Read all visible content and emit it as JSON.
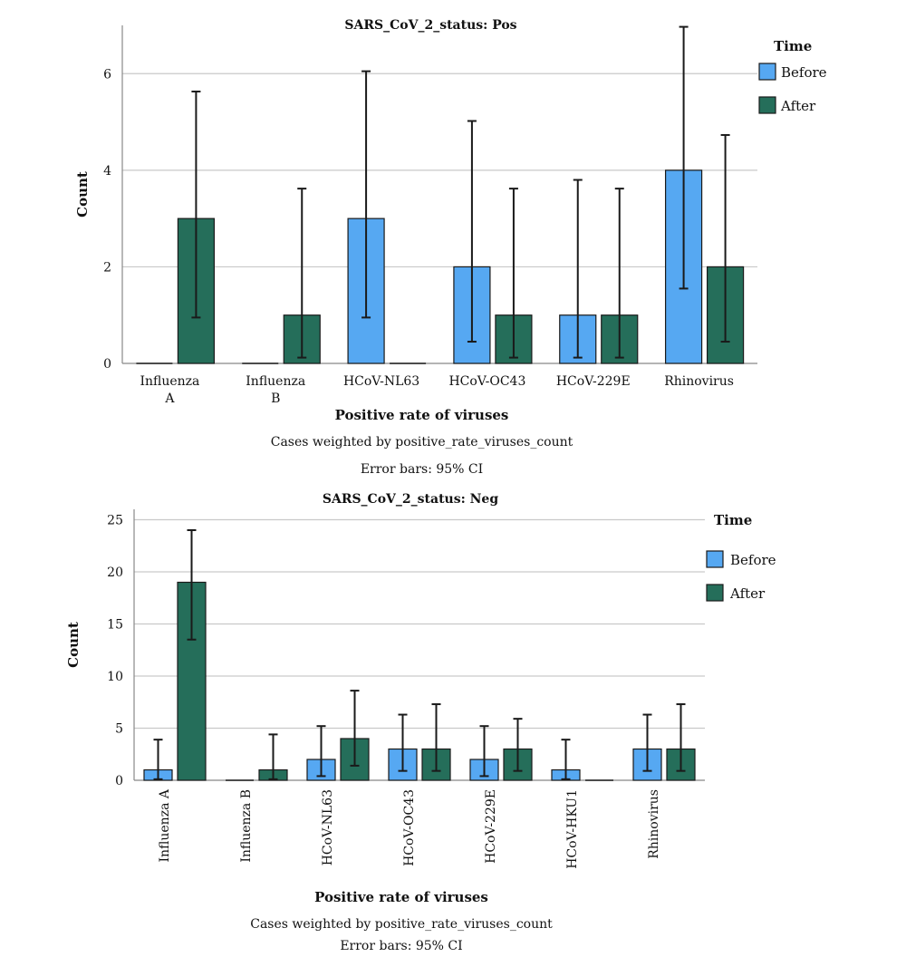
{
  "chart_data": [
    {
      "type": "bar",
      "title": "SARS_CoV_2_status: Pos",
      "xlabel": "Positive rate of viruses",
      "ylabel": "Count",
      "categories": [
        "Influenza\nA",
        "Influenza\nB",
        "HCoV-NL63",
        "HCoV-OC43",
        "HCoV-229E",
        "Rhinovirus"
      ],
      "ylim": [
        0,
        7
      ],
      "yticks": [
        0,
        2,
        4,
        6
      ],
      "grid": true,
      "legend": {
        "title": "Time",
        "placement": "right"
      },
      "series": [
        {
          "name": "Before",
          "color": "#56a8f2",
          "values": [
            0,
            0,
            3,
            2,
            1,
            4
          ],
          "ci_low": [
            null,
            null,
            0.95,
            0.45,
            0.12,
            1.55
          ],
          "ci_high": [
            null,
            null,
            6.05,
            5.02,
            3.8,
            6.97
          ]
        },
        {
          "name": "After",
          "color": "#256e5a",
          "values": [
            3,
            1,
            0,
            1,
            1,
            2
          ],
          "ci_low": [
            0.95,
            0.12,
            null,
            0.12,
            0.12,
            0.45
          ],
          "ci_high": [
            5.63,
            3.62,
            null,
            3.62,
            3.62,
            4.73
          ]
        }
      ],
      "notes": [
        "Cases weighted by positive_rate_viruses_count",
        "Error bars: 95% CI"
      ]
    },
    {
      "type": "bar",
      "title": "SARS_CoV_2_status: Neg",
      "xlabel": "Positive rate of viruses",
      "ylabel": "Count",
      "categories": [
        "Influenza A",
        "Influenza B",
        "HCoV-NL63",
        "HCoV-OC43",
        "HCoV-229E",
        "HCoV-HKU1",
        "Rhinovirus"
      ],
      "ylim": [
        0,
        26
      ],
      "yticks": [
        0,
        5,
        10,
        15,
        20,
        25
      ],
      "grid": true,
      "legend": {
        "title": "Time",
        "placement": "right"
      },
      "series": [
        {
          "name": "Before",
          "color": "#56a8f2",
          "values": [
            1,
            0,
            2,
            3,
            2,
            1,
            3
          ],
          "ci_low": [
            0.1,
            null,
            0.4,
            0.9,
            0.4,
            0.1,
            0.9
          ],
          "ci_high": [
            3.9,
            null,
            5.2,
            6.3,
            5.2,
            3.9,
            6.3
          ]
        },
        {
          "name": "After",
          "color": "#256e5a",
          "values": [
            19,
            1,
            4,
            3,
            3,
            0,
            3
          ],
          "ci_low": [
            13.5,
            0.1,
            1.4,
            0.9,
            0.9,
            null,
            0.9
          ],
          "ci_high": [
            24.0,
            4.4,
            8.6,
            7.3,
            5.9,
            null,
            7.3
          ]
        }
      ],
      "notes": [
        "Cases weighted by positive_rate_viruses_count",
        "Error bars: 95% CI"
      ]
    }
  ]
}
